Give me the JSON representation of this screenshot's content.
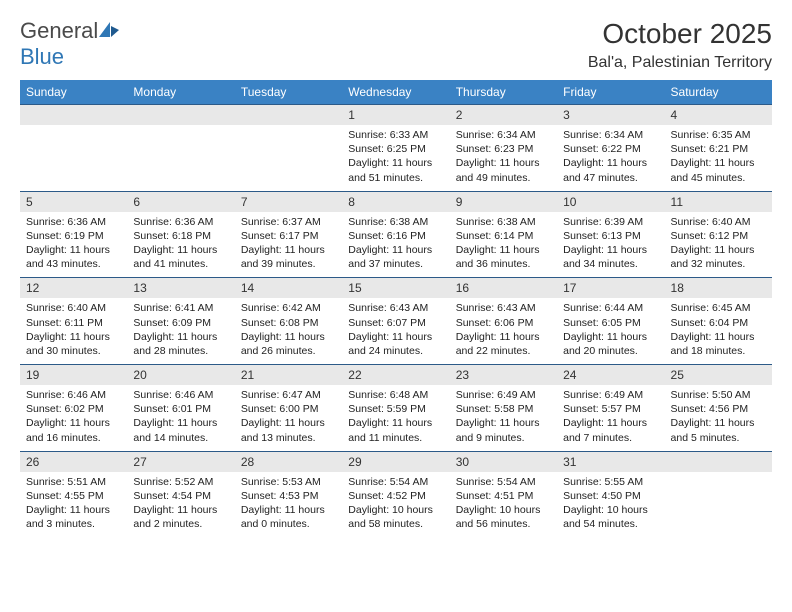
{
  "brand": {
    "word1": "General",
    "word2": "Blue"
  },
  "title": "October 2025",
  "location": "Bal'a, Palestinian Territory",
  "colors": {
    "header_bg": "#3a82c4",
    "header_text": "#ffffff",
    "daynum_bg": "#e8e8e8",
    "row_border": "#2c5a88",
    "text": "#222222",
    "brand_gray": "#4a4a4a",
    "brand_blue": "#2f77b5"
  },
  "weekdays": [
    "Sunday",
    "Monday",
    "Tuesday",
    "Wednesday",
    "Thursday",
    "Friday",
    "Saturday"
  ],
  "weeks": [
    [
      null,
      null,
      null,
      {
        "n": "1",
        "sr": "6:33 AM",
        "ss": "6:25 PM",
        "dl": "11 hours and 51 minutes."
      },
      {
        "n": "2",
        "sr": "6:34 AM",
        "ss": "6:23 PM",
        "dl": "11 hours and 49 minutes."
      },
      {
        "n": "3",
        "sr": "6:34 AM",
        "ss": "6:22 PM",
        "dl": "11 hours and 47 minutes."
      },
      {
        "n": "4",
        "sr": "6:35 AM",
        "ss": "6:21 PM",
        "dl": "11 hours and 45 minutes."
      }
    ],
    [
      {
        "n": "5",
        "sr": "6:36 AM",
        "ss": "6:19 PM",
        "dl": "11 hours and 43 minutes."
      },
      {
        "n": "6",
        "sr": "6:36 AM",
        "ss": "6:18 PM",
        "dl": "11 hours and 41 minutes."
      },
      {
        "n": "7",
        "sr": "6:37 AM",
        "ss": "6:17 PM",
        "dl": "11 hours and 39 minutes."
      },
      {
        "n": "8",
        "sr": "6:38 AM",
        "ss": "6:16 PM",
        "dl": "11 hours and 37 minutes."
      },
      {
        "n": "9",
        "sr": "6:38 AM",
        "ss": "6:14 PM",
        "dl": "11 hours and 36 minutes."
      },
      {
        "n": "10",
        "sr": "6:39 AM",
        "ss": "6:13 PM",
        "dl": "11 hours and 34 minutes."
      },
      {
        "n": "11",
        "sr": "6:40 AM",
        "ss": "6:12 PM",
        "dl": "11 hours and 32 minutes."
      }
    ],
    [
      {
        "n": "12",
        "sr": "6:40 AM",
        "ss": "6:11 PM",
        "dl": "11 hours and 30 minutes."
      },
      {
        "n": "13",
        "sr": "6:41 AM",
        "ss": "6:09 PM",
        "dl": "11 hours and 28 minutes."
      },
      {
        "n": "14",
        "sr": "6:42 AM",
        "ss": "6:08 PM",
        "dl": "11 hours and 26 minutes."
      },
      {
        "n": "15",
        "sr": "6:43 AM",
        "ss": "6:07 PM",
        "dl": "11 hours and 24 minutes."
      },
      {
        "n": "16",
        "sr": "6:43 AM",
        "ss": "6:06 PM",
        "dl": "11 hours and 22 minutes."
      },
      {
        "n": "17",
        "sr": "6:44 AM",
        "ss": "6:05 PM",
        "dl": "11 hours and 20 minutes."
      },
      {
        "n": "18",
        "sr": "6:45 AM",
        "ss": "6:04 PM",
        "dl": "11 hours and 18 minutes."
      }
    ],
    [
      {
        "n": "19",
        "sr": "6:46 AM",
        "ss": "6:02 PM",
        "dl": "11 hours and 16 minutes."
      },
      {
        "n": "20",
        "sr": "6:46 AM",
        "ss": "6:01 PM",
        "dl": "11 hours and 14 minutes."
      },
      {
        "n": "21",
        "sr": "6:47 AM",
        "ss": "6:00 PM",
        "dl": "11 hours and 13 minutes."
      },
      {
        "n": "22",
        "sr": "6:48 AM",
        "ss": "5:59 PM",
        "dl": "11 hours and 11 minutes."
      },
      {
        "n": "23",
        "sr": "6:49 AM",
        "ss": "5:58 PM",
        "dl": "11 hours and 9 minutes."
      },
      {
        "n": "24",
        "sr": "6:49 AM",
        "ss": "5:57 PM",
        "dl": "11 hours and 7 minutes."
      },
      {
        "n": "25",
        "sr": "5:50 AM",
        "ss": "4:56 PM",
        "dl": "11 hours and 5 minutes."
      }
    ],
    [
      {
        "n": "26",
        "sr": "5:51 AM",
        "ss": "4:55 PM",
        "dl": "11 hours and 3 minutes."
      },
      {
        "n": "27",
        "sr": "5:52 AM",
        "ss": "4:54 PM",
        "dl": "11 hours and 2 minutes."
      },
      {
        "n": "28",
        "sr": "5:53 AM",
        "ss": "4:53 PM",
        "dl": "11 hours and 0 minutes."
      },
      {
        "n": "29",
        "sr": "5:54 AM",
        "ss": "4:52 PM",
        "dl": "10 hours and 58 minutes."
      },
      {
        "n": "30",
        "sr": "5:54 AM",
        "ss": "4:51 PM",
        "dl": "10 hours and 56 minutes."
      },
      {
        "n": "31",
        "sr": "5:55 AM",
        "ss": "4:50 PM",
        "dl": "10 hours and 54 minutes."
      },
      null
    ]
  ],
  "labels": {
    "sunrise": "Sunrise:",
    "sunset": "Sunset:",
    "daylight": "Daylight:"
  }
}
